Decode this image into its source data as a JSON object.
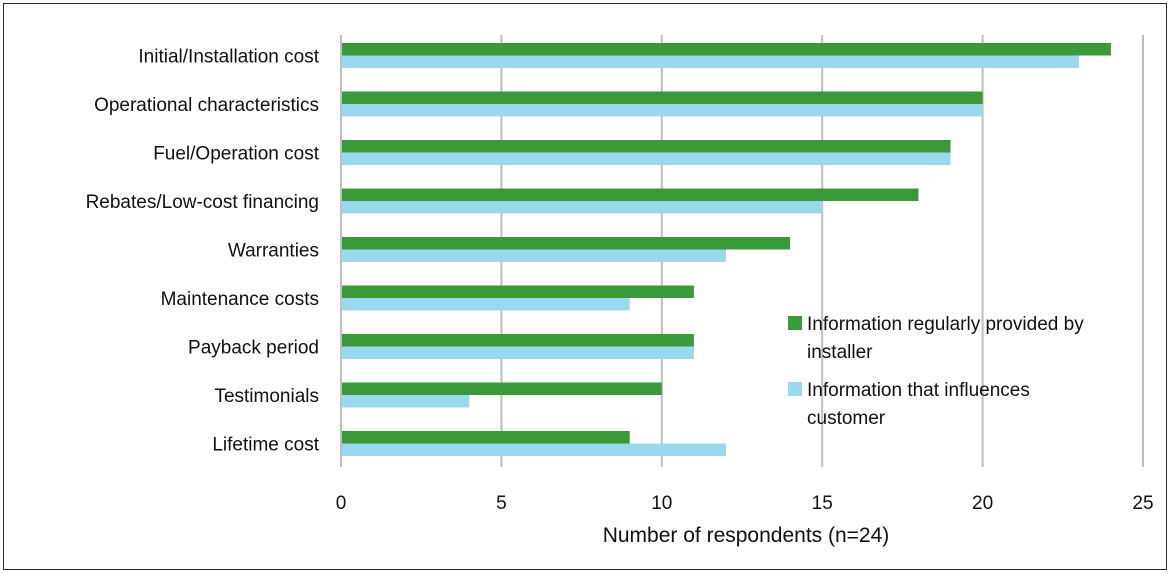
{
  "chart_data": {
    "type": "bar",
    "orientation": "horizontal",
    "categories": [
      "Initial/Installation cost",
      "Operational characteristics",
      "Fuel/Operation cost",
      "Rebates/Low-cost financing",
      "Warranties",
      "Maintenance costs",
      "Payback period",
      "Testimonials",
      "Lifetime cost"
    ],
    "series": [
      {
        "name": "Information regularly provided by installer",
        "name_lines": [
          "Information regularly provided by",
          "installer"
        ],
        "color": "#3a9a3a",
        "values": [
          24,
          20,
          19,
          18,
          14,
          11,
          11,
          10,
          9
        ]
      },
      {
        "name": "Information that influences customer",
        "name_lines": [
          "Information that influences",
          "customer"
        ],
        "color": "#9ad8f0",
        "values": [
          23,
          20,
          19,
          15,
          12,
          9,
          11,
          4,
          12
        ]
      }
    ],
    "xlabel": "Number of respondents (n=24)",
    "ylabel": "",
    "xlim": [
      0,
      25
    ],
    "xticks": [
      0,
      5,
      10,
      15,
      20,
      25
    ],
    "grid": "vertical",
    "legend": "right"
  }
}
